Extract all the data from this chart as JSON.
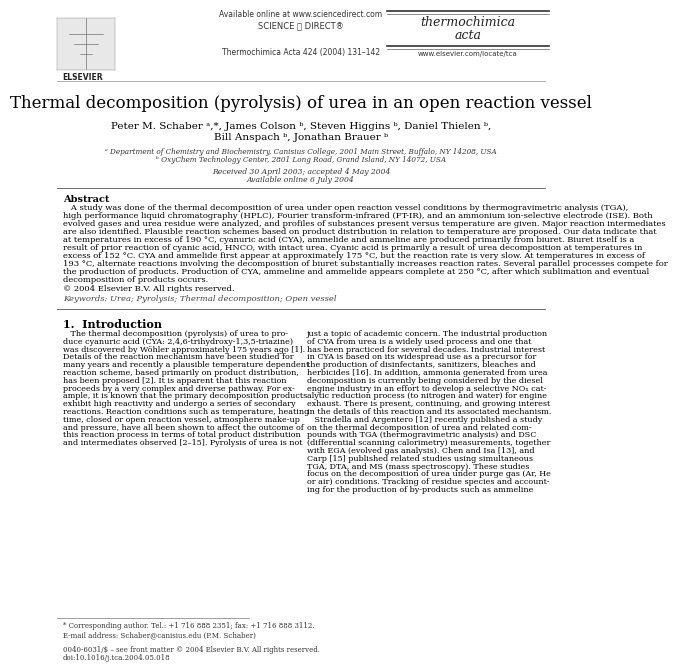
{
  "title": "Thermal decomposition (pyrolysis) of urea in an open reaction vessel",
  "authors_line1": "Peter M. Schaber ᵃ,*, James Colson ᵇ, Steven Higgins ᵇ, Daniel Thielen ᵇ,",
  "authors_line2": "Bill Anspach ᵇ, Jonathan Brauer ᵇ",
  "affil_a": "ᵃ Department of Chemistry and Biochemistry, Canisius College, 2001 Main Street, Buffalo, NY 14208, USA",
  "affil_b": "ᵇ OxyChem Technology Center, 2801 Long Road, Grand Island, NY 14072, USA",
  "received": "Received 30 April 2003; accepted 4 May 2004",
  "available": "Available online 6 July 2004",
  "journal": "Thermochimica Acta 424 (2004) 131–142",
  "journal_name_1": "thermochimica",
  "journal_name_2": "acta",
  "website": "www.elsevier.com/locate/tca",
  "sd_text": "Available online at www.sciencedirect.com",
  "sd_logo": "SCIENCE ⓓ DIRECT®",
  "abstract_title": "Abstract",
  "copyright": "© 2004 Elsevier B.V. All rights reserved.",
  "keywords": "Keywords: Urea; Pyrolysis; Thermal decomposition; Open vessel",
  "intro_title": "1.  Introduction",
  "abstract_lines": [
    "   A study was done of the thermal decomposition of urea under open reaction vessel conditions by thermogravimetric analysis (TGA),",
    "high performance liquid chromatography (HPLC), Fourier transform-infrared (FT-IR), and an ammonium ion-selective electrode (ISE). Both",
    "evolved gases and urea residue were analyzed, and profiles of substances present versus temperature are given. Major reaction intermediates",
    "are also identified. Plausible reaction schemes based on product distribution in relation to temperature are proposed. Our data indicate that",
    "at temperatures in excess of 190 °C, cyanuric acid (CYA), ammelide and ammeline are produced primarily from biuret. Biuret itself is a",
    "result of prior reaction of cyanic acid, HNCO, with intact urea. Cyanic acid is primarily a result of urea decomposition at temperatures in",
    "excess of 152 °C. CYA and ammelide first appear at approximately 175 °C, but the reaction rate is very slow. At temperatures in excess of",
    "193 °C, alternate reactions involving the decomposition of biuret substantially increases reaction rates. Several parallel processes compete for",
    "the production of products. Production of CYA, ammeline and ammelide appears complete at 250 °C, after which sublimation and eventual",
    "decomposition of products occurs."
  ],
  "col1_lines": [
    "   The thermal decomposition (pyrolysis) of urea to pro-",
    "duce cyanuric acid (CYA: 2,4,6-trihydroxy-1,3,5-triazine)",
    "was discovered by Wöhler approximately 175 years ago [1].",
    "Details of the reaction mechanism have been studied for",
    "many years and recently a plausible temperature dependent",
    "reaction scheme, based primarily on product distribution,",
    "has been proposed [2]. It is apparent that this reaction",
    "proceeds by a very complex and diverse pathway. For ex-",
    "ample, it is known that the primary decomposition products",
    "exhibit high reactivity and undergo a series of secondary",
    "reactions. Reaction conditions such as temperature, heating",
    "time, closed or open reaction vessel, atmosphere make-up",
    "and pressure, have all been shown to affect the outcome of",
    "this reaction process in terms of total product distribution",
    "and intermediates observed [2–15]. Pyrolysis of urea is not"
  ],
  "col2_lines": [
    "just a topic of academic concern. The industrial production",
    "of CYA from urea is a widely used process and one that",
    "has been practiced for several decades. Industrial interest",
    "in CYA is based on its widespread use as a precursor for",
    "the production of disinfectants, sanitizers, bleaches and",
    "herbicides [16]. In addition, ammonia generated from urea",
    "decomposition is currently being considered by the diesel",
    "engine industry in an effort to develop a selective NOₓ cat-",
    "alytic reduction process (to nitrogen and water) for engine",
    "exhaust. There is present, continuing, and growing interest",
    "in the details of this reaction and its associated mechanism.",
    "   Stradella and Argentero [12] recently published a study",
    "on the thermal decomposition of urea and related com-",
    "pounds with TGA (thermogravimetric analysis) and DSC",
    "(differential scanning calorimetry) measurements, together"
  ],
  "col2_lines2": [
    "with EGA (evolved gas analysis). Chen and Isa [13], and",
    "Carp [15] published related studies using simultaneous",
    "TGA, DTA, and MS (mass spectroscopy). These studies",
    "focus on the decomposition of urea under purge gas (Ar, He",
    "or air) conditions. Tracking of residue species and account-",
    "ing for the production of by-products such as ammeline"
  ],
  "footnote1": "* Corresponding author. Tel.: +1 716 888 2351; fax: +1 716 888 3112.",
  "footnote2": "E-mail address: Schaber@canisius.edu (P.M. Schaber)",
  "doi": "doi:10.1016/j.tca.2004.05.018",
  "issn": "0040-6031/$ – see front matter © 2004 Elsevier B.V. All rights reserved.",
  "bg_color": "#ffffff",
  "text_color": "#000000"
}
